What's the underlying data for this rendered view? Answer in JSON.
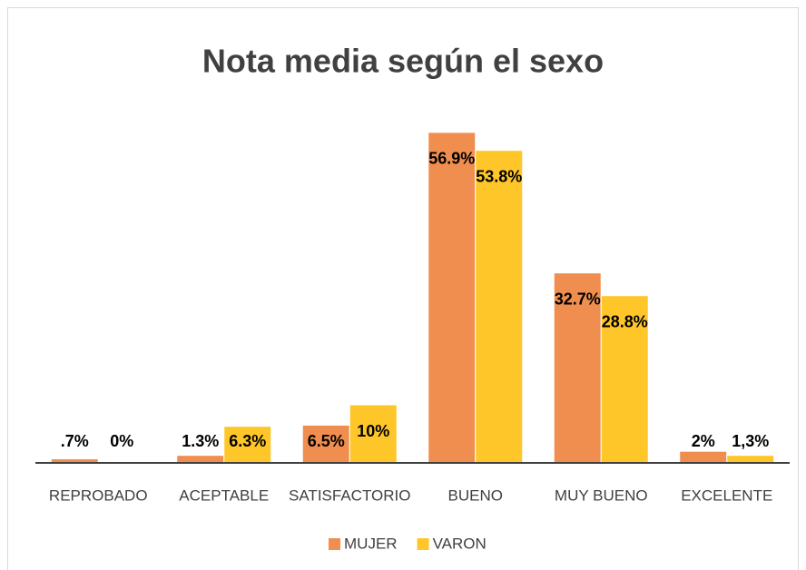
{
  "chart_data": {
    "type": "bar",
    "title": "Nota media según el sexo",
    "categories": [
      "REPROBADO",
      "ACEPTABLE",
      "SATISFACTORIO",
      "BUENO",
      "MUY BUENO",
      "EXCELENTE"
    ],
    "series": [
      {
        "name": "MUJER",
        "color": "#EF8E4E",
        "values": [
          0.7,
          1.3,
          6.5,
          56.9,
          32.7,
          2
        ],
        "value_labels": [
          ".7%",
          "1.3%",
          "6.5%",
          "56.9%",
          "32.7%",
          "2%"
        ]
      },
      {
        "name": "VARON",
        "color": "#FFC62A",
        "values": [
          0,
          6.3,
          10,
          53.8,
          28.8,
          1.3
        ],
        "value_labels": [
          "0%",
          "6.3%",
          "10%",
          "53.8%",
          "28.8%",
          "1,3%"
        ]
      }
    ],
    "ylim": [
      0,
      60
    ],
    "legend": "bottom"
  }
}
